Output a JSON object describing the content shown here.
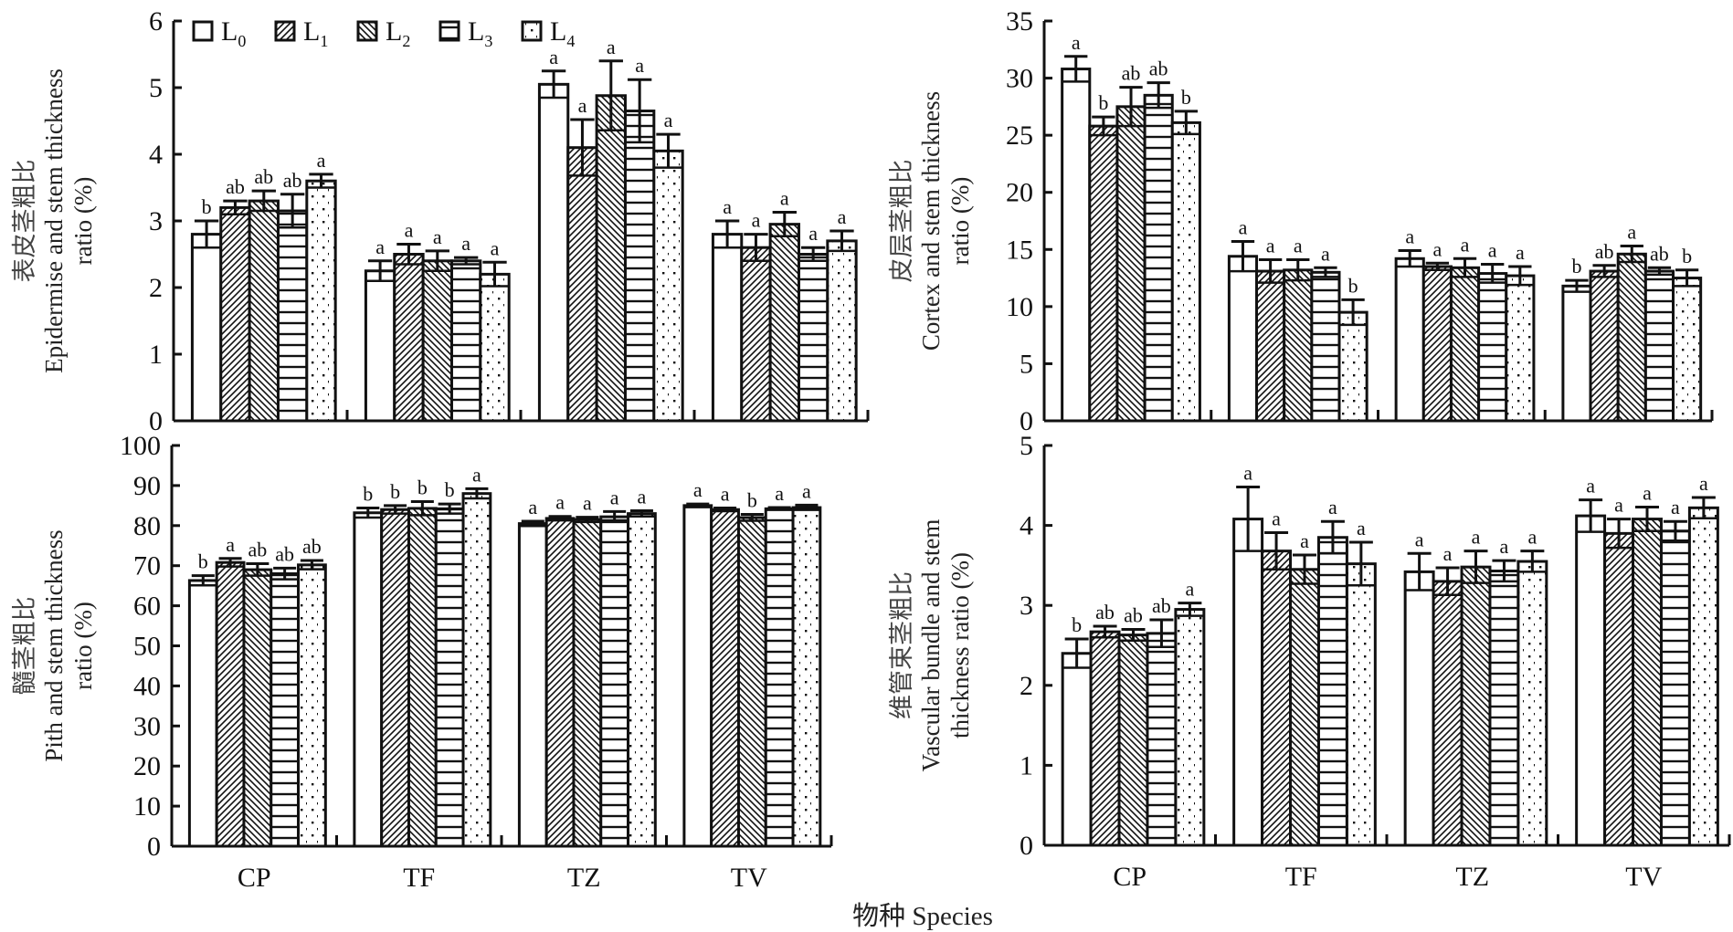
{
  "figure": {
    "x_title": "物种 Species",
    "legend": [
      {
        "key": "L0",
        "base": "L",
        "sub": "0",
        "pattern": "blank"
      },
      {
        "key": "L1",
        "base": "L",
        "sub": "1",
        "pattern": "diag-forward"
      },
      {
        "key": "L2",
        "base": "L",
        "sub": "2",
        "pattern": "diag-back"
      },
      {
        "key": "L3",
        "base": "L",
        "sub": "3",
        "pattern": "horizontal"
      },
      {
        "key": "L4",
        "base": "L",
        "sub": "4",
        "pattern": "dots"
      }
    ],
    "colors": {
      "ink": "#111111",
      "background": "#ffffff"
    }
  },
  "chart_data": [
    {
      "id": "epidermis",
      "type": "bar",
      "ylabel_cn": "表皮茎粗比",
      "ylabel_en_1": "Epidermise and stem thickness",
      "ylabel_en_2": "ratio (%)",
      "xlabel": "",
      "ylim": [
        0,
        6
      ],
      "yticks": [
        0,
        1,
        2,
        3,
        4,
        5,
        6
      ],
      "categories": [
        "CP",
        "TF",
        "TZ",
        "TV"
      ],
      "show_category_labels": false,
      "legend": "top-left",
      "series": [
        {
          "name": "L0",
          "values": [
            2.8,
            2.25,
            5.05,
            2.8
          ],
          "errors": [
            0.2,
            0.15,
            0.2,
            0.2
          ],
          "sig": [
            "b",
            "a",
            "a",
            "a"
          ]
        },
        {
          "name": "L1",
          "values": [
            3.2,
            2.5,
            4.1,
            2.6
          ],
          "errors": [
            0.1,
            0.15,
            0.42,
            0.2
          ],
          "sig": [
            "ab",
            "a",
            "a",
            "a"
          ]
        },
        {
          "name": "L2",
          "values": [
            3.3,
            2.4,
            4.88,
            2.95
          ],
          "errors": [
            0.15,
            0.15,
            0.52,
            0.18
          ],
          "sig": [
            "ab",
            "a",
            "a",
            "a"
          ]
        },
        {
          "name": "L3",
          "values": [
            3.15,
            2.4,
            4.65,
            2.5
          ],
          "errors": [
            0.25,
            0.05,
            0.47,
            0.1
          ],
          "sig": [
            "ab",
            "a",
            "a",
            "a"
          ]
        },
        {
          "name": "L4",
          "values": [
            3.6,
            2.2,
            4.05,
            2.7
          ],
          "errors": [
            0.1,
            0.18,
            0.25,
            0.15
          ],
          "sig": [
            "a",
            "a",
            "a",
            "a"
          ]
        }
      ]
    },
    {
      "id": "cortex",
      "type": "bar",
      "ylabel_cn": "皮层茎粗比",
      "ylabel_en_1": "Cortex and stem thickness",
      "ylabel_en_2": "ratio (%)",
      "xlabel": "",
      "ylim": [
        0,
        35
      ],
      "yticks": [
        0,
        5,
        10,
        15,
        20,
        25,
        30,
        35
      ],
      "categories": [
        "CP",
        "TF",
        "TZ",
        "TV"
      ],
      "show_category_labels": false,
      "series": [
        {
          "name": "L0",
          "values": [
            30.8,
            14.4,
            14.2,
            11.8
          ],
          "errors": [
            1.1,
            1.3,
            0.7,
            0.5
          ],
          "sig": [
            "a",
            "a",
            "a",
            "b"
          ]
        },
        {
          "name": "L1",
          "values": [
            25.8,
            13.1,
            13.5,
            13.1
          ],
          "errors": [
            0.8,
            1.0,
            0.3,
            0.5
          ],
          "sig": [
            "b",
            "a",
            "a",
            "ab"
          ]
        },
        {
          "name": "L2",
          "values": [
            27.5,
            13.2,
            13.4,
            14.6
          ],
          "errors": [
            1.7,
            0.9,
            0.8,
            0.7
          ],
          "sig": [
            "ab",
            "a",
            "a",
            "a"
          ]
        },
        {
          "name": "L3",
          "values": [
            28.5,
            13.0,
            12.9,
            13.1
          ],
          "errors": [
            1.1,
            0.4,
            0.8,
            0.3
          ],
          "sig": [
            "ab",
            "a",
            "a",
            "ab"
          ]
        },
        {
          "name": "L4",
          "values": [
            26.1,
            9.5,
            12.7,
            12.5
          ],
          "errors": [
            1.0,
            1.1,
            0.8,
            0.7
          ],
          "sig": [
            "b",
            "b",
            "a",
            "b"
          ]
        }
      ]
    },
    {
      "id": "pith",
      "type": "bar",
      "ylabel_cn": "髓茎粗比",
      "ylabel_en_1": "Pith and stem thickness",
      "ylabel_en_2": "ratio (%)",
      "xlabel": "",
      "ylim": [
        0,
        100
      ],
      "yticks": [
        0,
        10,
        20,
        30,
        40,
        50,
        60,
        70,
        80,
        90,
        100
      ],
      "categories": [
        "CP",
        "TF",
        "TZ",
        "TV"
      ],
      "show_category_labels": true,
      "series": [
        {
          "name": "L0",
          "values": [
            66.3,
            83.2,
            80.5,
            85.0
          ],
          "errors": [
            1.2,
            1.2,
            0.6,
            0.4
          ],
          "sig": [
            "b",
            "b",
            "a",
            "a"
          ]
        },
        {
          "name": "L1",
          "values": [
            70.8,
            84.0,
            81.8,
            84.0
          ],
          "errors": [
            1.0,
            1.0,
            0.5,
            0.4
          ],
          "sig": [
            "a",
            "b",
            "a",
            "a"
          ]
        },
        {
          "name": "L2",
          "values": [
            69.0,
            84.3,
            81.5,
            82.0
          ],
          "errors": [
            1.5,
            1.7,
            0.6,
            0.8
          ],
          "sig": [
            "ab",
            "b",
            "a",
            "b"
          ]
        },
        {
          "name": "L3",
          "values": [
            68.0,
            84.2,
            82.2,
            84.2
          ],
          "errors": [
            1.4,
            1.2,
            1.3,
            0.3
          ],
          "sig": [
            "ab",
            "b",
            "a",
            "a"
          ]
        },
        {
          "name": "L4",
          "values": [
            70.2,
            88.0,
            83.0,
            84.5
          ],
          "errors": [
            1.1,
            1.2,
            0.7,
            0.6
          ],
          "sig": [
            "ab",
            "a",
            "a",
            "a"
          ]
        }
      ]
    },
    {
      "id": "vascular",
      "type": "bar",
      "ylabel_cn": "维管束茎粗比",
      "ylabel_en_1": "Vascular bundle and stem",
      "ylabel_en_2": "thickness ratio (%)",
      "xlabel": "",
      "ylim": [
        0,
        5
      ],
      "yticks": [
        0,
        1,
        2,
        3,
        4,
        5
      ],
      "categories": [
        "CP",
        "TF",
        "TZ",
        "TV"
      ],
      "show_category_labels": true,
      "series": [
        {
          "name": "L0",
          "values": [
            2.4,
            4.08,
            3.42,
            4.12
          ],
          "errors": [
            0.18,
            0.4,
            0.23,
            0.2
          ],
          "sig": [
            "b",
            "a",
            "a",
            "a"
          ]
        },
        {
          "name": "L1",
          "values": [
            2.67,
            3.68,
            3.3,
            3.9
          ],
          "errors": [
            0.07,
            0.23,
            0.17,
            0.18
          ],
          "sig": [
            "ab",
            "a",
            "a",
            "a"
          ]
        },
        {
          "name": "L2",
          "values": [
            2.63,
            3.45,
            3.48,
            4.08
          ],
          "errors": [
            0.07,
            0.18,
            0.2,
            0.15
          ],
          "sig": [
            "ab",
            "a",
            "a",
            "a"
          ]
        },
        {
          "name": "L3",
          "values": [
            2.65,
            3.85,
            3.43,
            3.93
          ],
          "errors": [
            0.17,
            0.2,
            0.13,
            0.12
          ],
          "sig": [
            "ab",
            "a",
            "a",
            "a"
          ]
        },
        {
          "name": "L4",
          "values": [
            2.95,
            3.52,
            3.55,
            4.22
          ],
          "errors": [
            0.08,
            0.27,
            0.13,
            0.13
          ],
          "sig": [
            "a",
            "a",
            "a",
            "a"
          ]
        }
      ]
    }
  ]
}
